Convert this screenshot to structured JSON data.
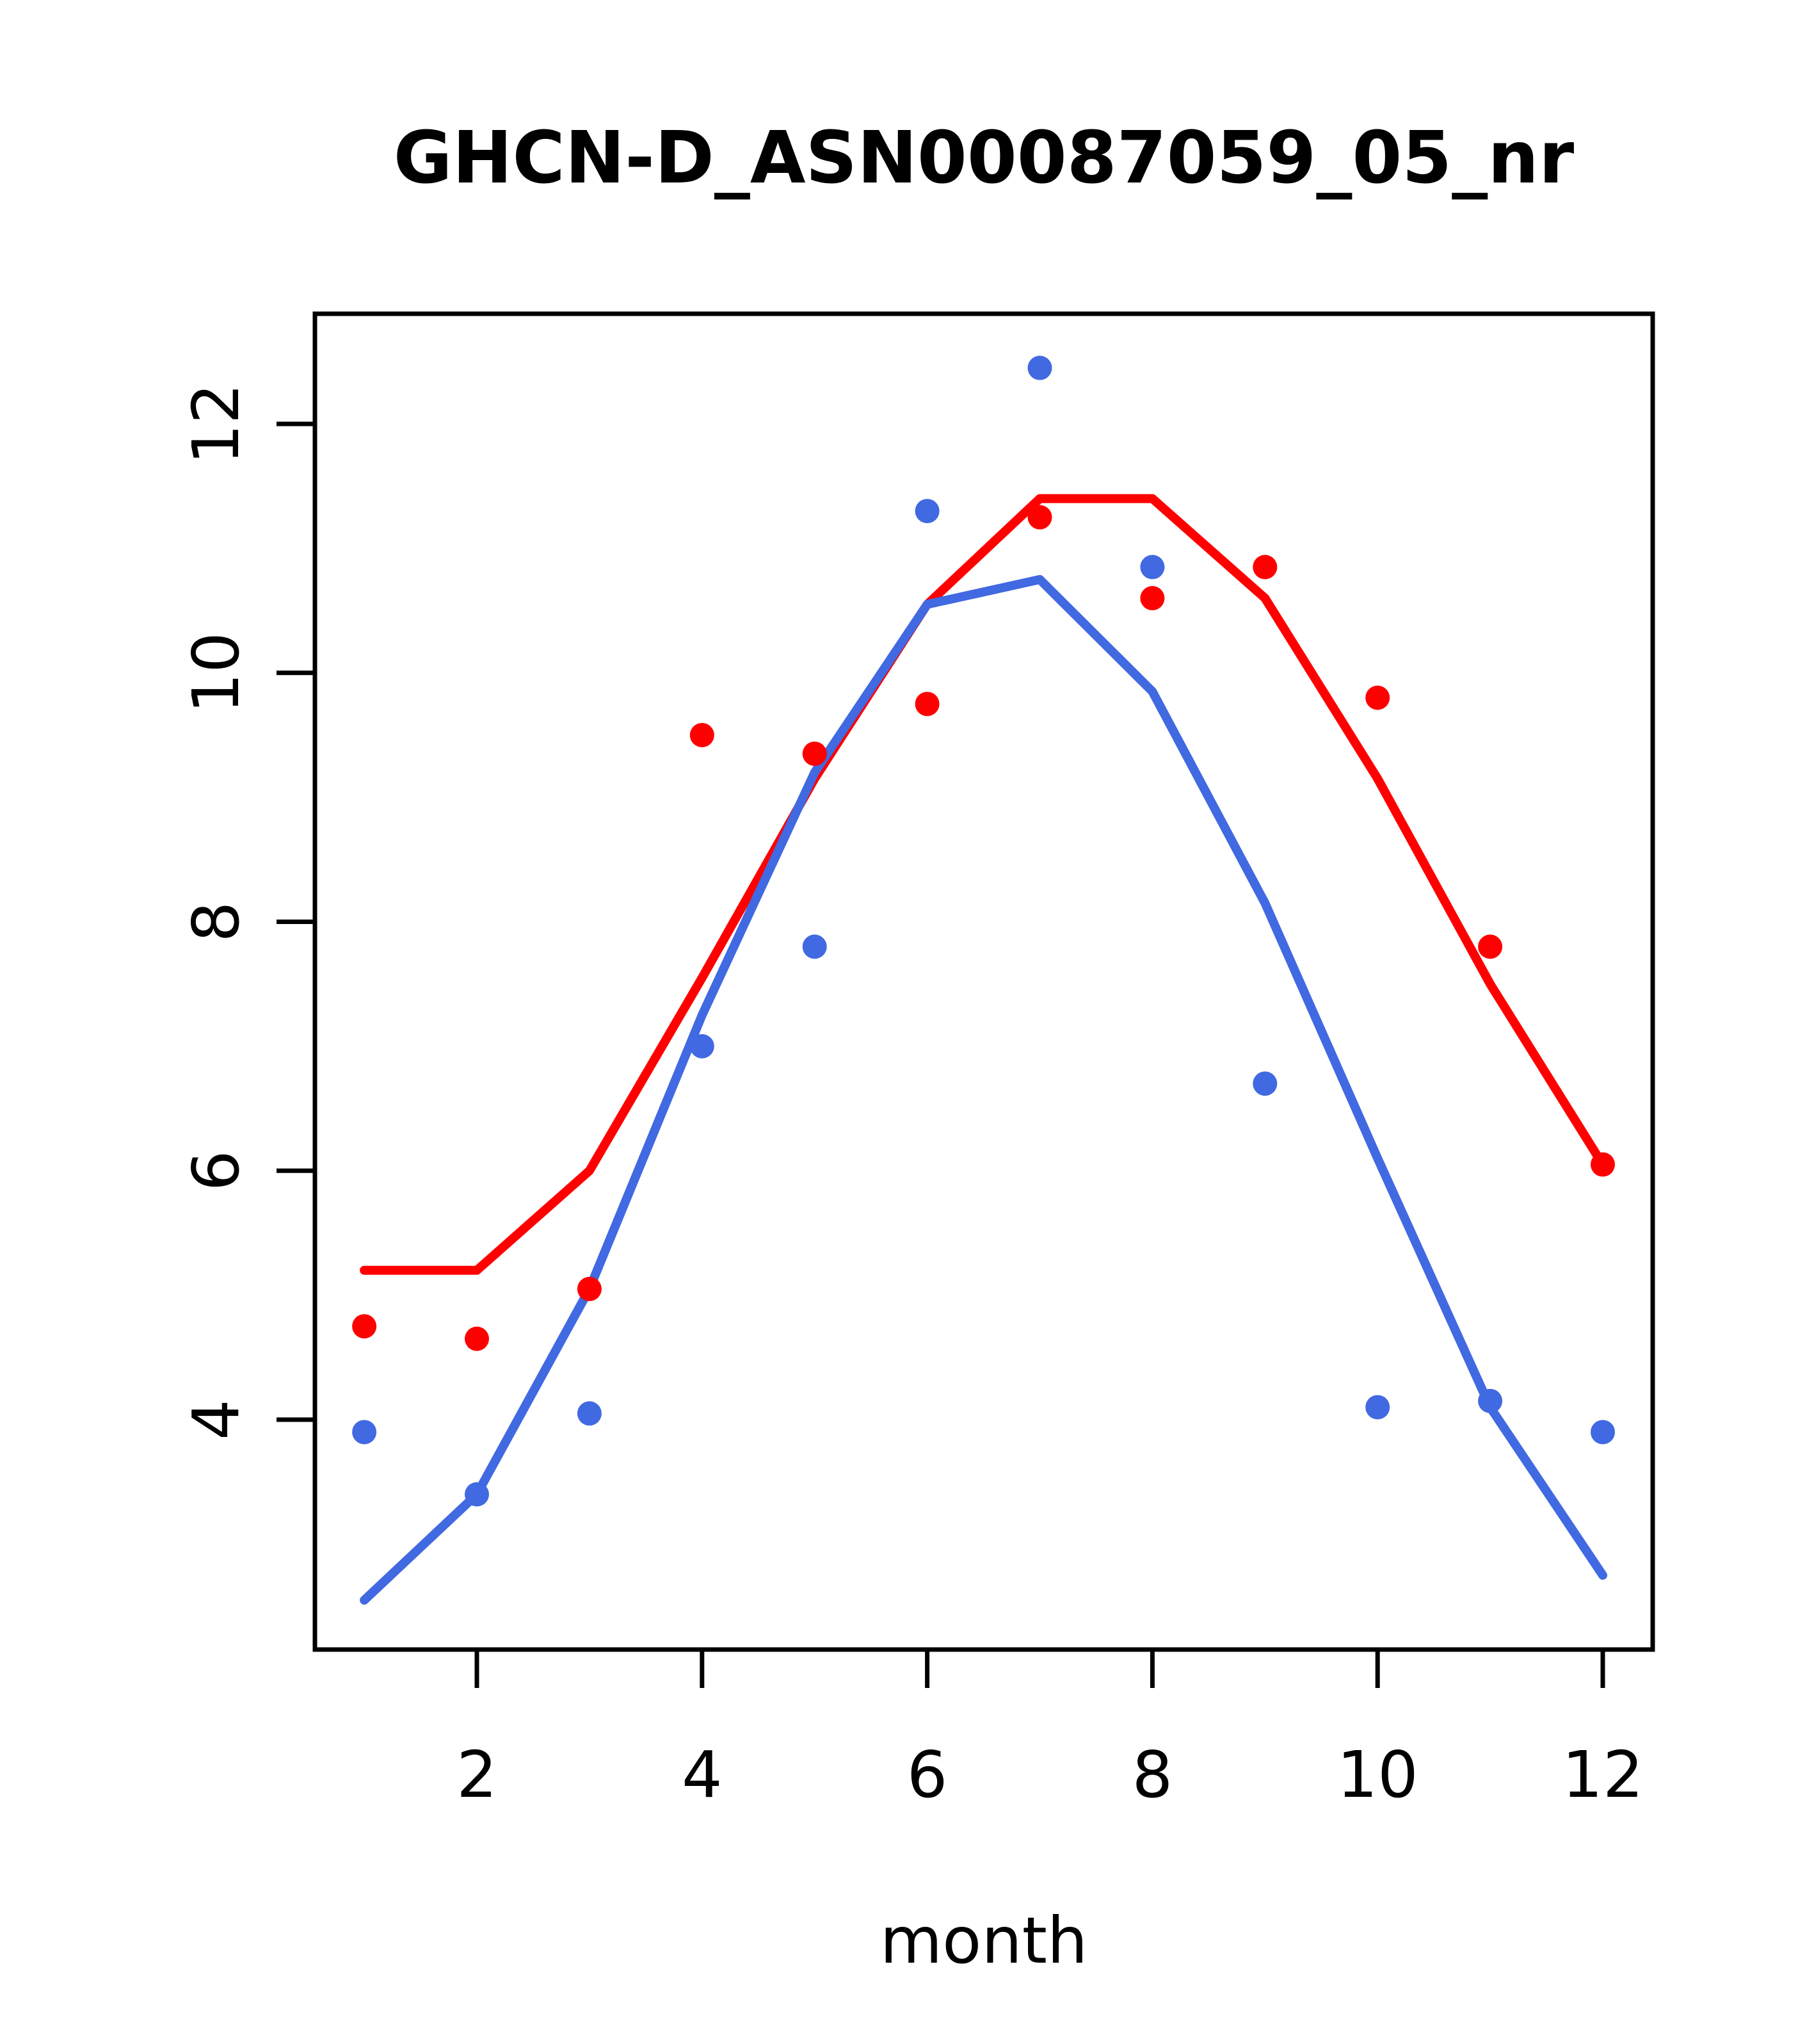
{
  "chart_data": {
    "type": "scatter+line",
    "title": "GHCN-D_ASN00087059_05_nr",
    "xlabel": "month",
    "ylabel": "",
    "x": [
      1,
      2,
      3,
      4,
      5,
      6,
      7,
      8,
      9,
      10,
      11,
      12
    ],
    "x_ticks": [
      2,
      4,
      6,
      8,
      10,
      12
    ],
    "y_ticks": [
      4,
      6,
      8,
      10,
      12
    ],
    "xlim": [
      0.56,
      12.44
    ],
    "ylim": [
      2.15,
      12.88
    ],
    "grid": false,
    "legend": null,
    "colors": {
      "red": "#ff0000",
      "blue": "#4169e1",
      "axis": "#000000"
    },
    "series": [
      {
        "name": "red-points",
        "type": "scatter",
        "color": "#ff0000",
        "values": [
          4.75,
          4.65,
          5.05,
          9.5,
          9.35,
          9.75,
          11.25,
          10.6,
          10.85,
          9.8,
          7.8,
          6.05
        ]
      },
      {
        "name": "blue-points",
        "type": "scatter",
        "color": "#4169e1",
        "values": [
          3.9,
          3.4,
          4.05,
          7.0,
          7.8,
          11.3,
          12.45,
          10.85,
          6.7,
          4.1,
          4.15,
          3.9
        ]
      },
      {
        "name": "red-line",
        "type": "line",
        "color": "#ff0000",
        "values": [
          5.2,
          5.2,
          6.0,
          7.55,
          9.15,
          10.55,
          11.4,
          11.4,
          10.6,
          9.15,
          7.5,
          6.05
        ]
      },
      {
        "name": "blue-line",
        "type": "line",
        "color": "#4169e1",
        "values": [
          2.55,
          3.4,
          5.05,
          7.25,
          9.2,
          10.55,
          10.75,
          9.85,
          8.15,
          6.1,
          4.1,
          2.75
        ]
      }
    ]
  }
}
